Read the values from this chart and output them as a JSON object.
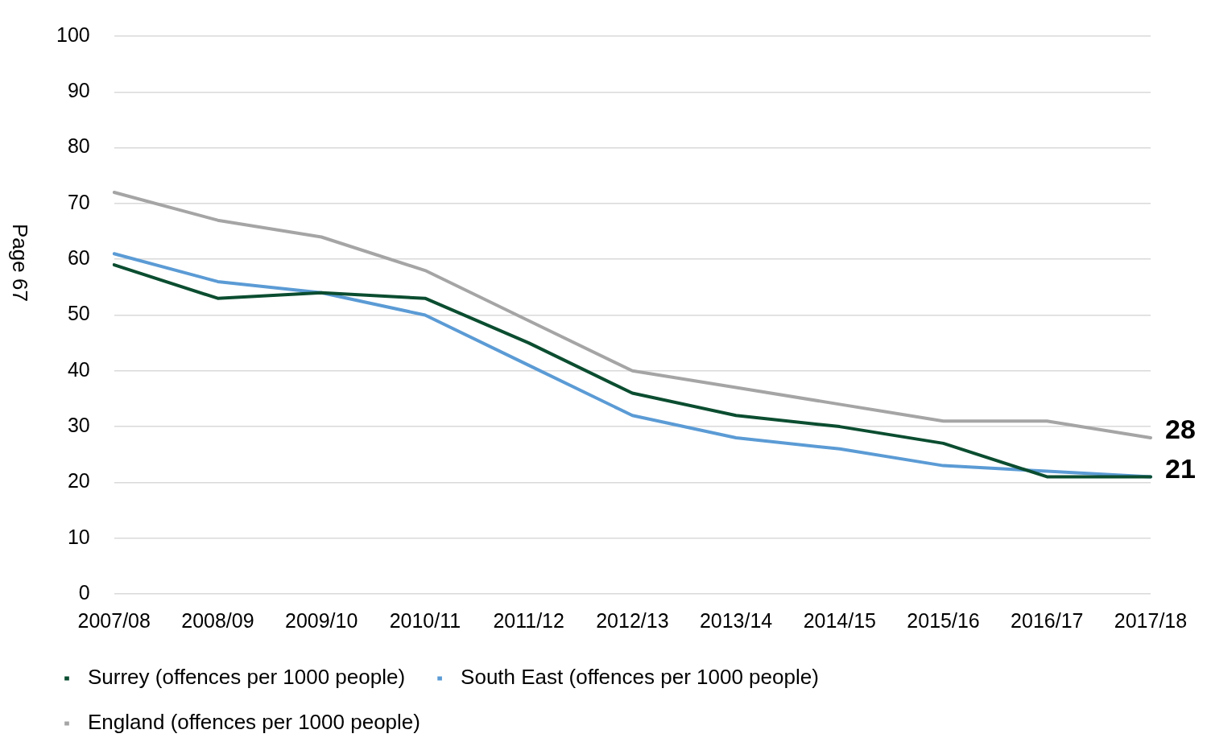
{
  "chart_data": {
    "type": "line",
    "categories": [
      "2007/08",
      "2008/09",
      "2009/10",
      "2010/11",
      "2011/12",
      "2012/13",
      "2013/14",
      "2014/15",
      "2015/16",
      "2016/17",
      "2017/18"
    ],
    "series": [
      {
        "name": "Surrey (offences per 1000 people)",
        "color": "#0b4d30",
        "values": [
          59,
          53,
          54,
          53,
          45,
          36,
          32,
          30,
          27,
          21,
          21
        ],
        "value_labels": [
          null,
          null,
          null,
          null,
          null,
          null,
          null,
          null,
          null,
          null,
          "21"
        ]
      },
      {
        "name": "South East (offences per 1000 people)",
        "color": "#5b9bd5",
        "values": [
          61,
          56,
          54,
          50,
          41,
          32,
          28,
          26,
          23,
          22,
          21
        ]
      },
      {
        "name": "England (offences per 1000 people)",
        "color": "#a5a5a5",
        "values": [
          72,
          67,
          64,
          58,
          49,
          40,
          37,
          34,
          31,
          31,
          28
        ],
        "value_labels": [
          null,
          null,
          null,
          null,
          null,
          null,
          null,
          null,
          null,
          null,
          "28"
        ]
      }
    ],
    "ylim": [
      0,
      100
    ],
    "yticks": [
      0,
      10,
      20,
      30,
      40,
      50,
      60,
      70,
      80,
      90,
      100
    ],
    "grid": "y",
    "legend": "bottom",
    "marker": "none",
    "line_style": "solid",
    "annotations": [
      "Page 67"
    ]
  }
}
